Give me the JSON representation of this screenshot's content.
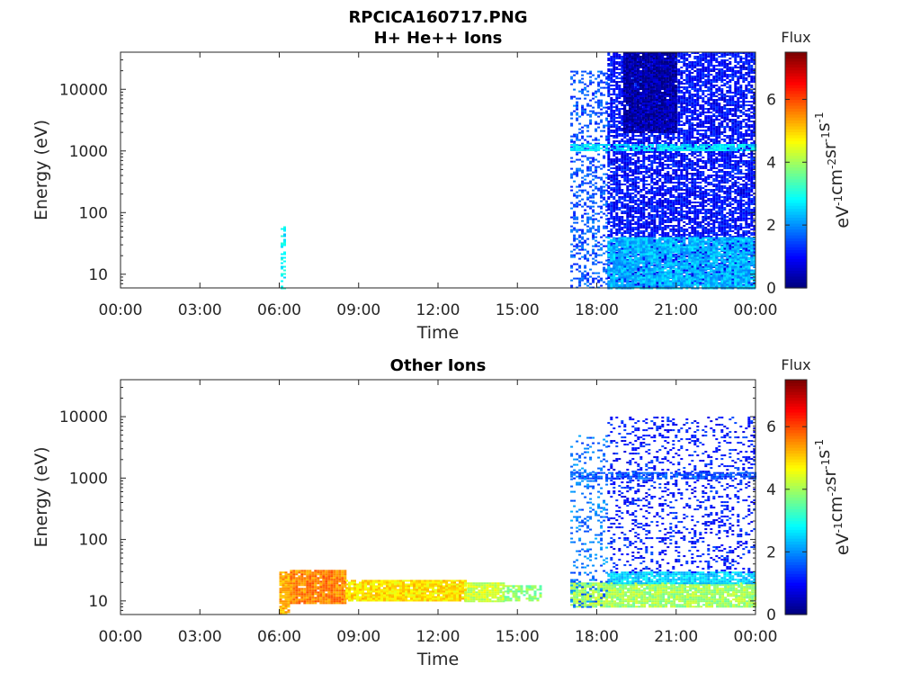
{
  "figure": {
    "title": "RPCICA160717.PNG"
  },
  "chart_data": [
    {
      "type": "heatmap",
      "title": "H+ He++ Ions",
      "xlabel": "Time",
      "ylabel": "Energy (eV)",
      "xticks": [
        "00:00",
        "03:00",
        "06:00",
        "09:00",
        "12:00",
        "15:00",
        "18:00",
        "21:00",
        "00:00"
      ],
      "xlim_hours": [
        0,
        24
      ],
      "yscale": "log",
      "yticks": [
        "10",
        "100",
        "1000",
        "10000"
      ],
      "ylim": [
        6,
        40000
      ],
      "colorbar": {
        "title": "Flux",
        "label": "eV-1 cm-2 sr-1 s-1",
        "ticks": [
          "0",
          "2",
          "4",
          "6"
        ],
        "range": [
          0,
          7.5
        ],
        "colormap": "jet"
      },
      "regions": [
        {
          "t_start": 6.05,
          "t_end": 6.2,
          "e_low": 6,
          "e_high": 60,
          "flux": 2.8,
          "density": 0.5
        },
        {
          "t_start": 17.0,
          "t_end": 18.4,
          "e_low": 6,
          "e_high": 20000,
          "flux": 1.5,
          "density": 0.35
        },
        {
          "t_start": 18.4,
          "t_end": 24.0,
          "e_low": 6,
          "e_high": 40000,
          "flux": 1.0,
          "density": 0.75
        },
        {
          "t_start": 19.0,
          "t_end": 21.0,
          "e_low": 2000,
          "e_high": 40000,
          "flux": 0.3,
          "density": 0.95
        },
        {
          "t_start": 18.4,
          "t_end": 24.0,
          "e_low": 6,
          "e_high": 40,
          "flux": 2.3,
          "density": 0.85
        },
        {
          "t_start": 17.0,
          "t_end": 24.0,
          "e_low": 1000,
          "e_high": 1300,
          "flux": 2.6,
          "density": 0.8
        }
      ]
    },
    {
      "type": "heatmap",
      "title": "Other Ions",
      "xlabel": "Time",
      "ylabel": "Energy (eV)",
      "xticks": [
        "00:00",
        "03:00",
        "06:00",
        "09:00",
        "12:00",
        "15:00",
        "18:00",
        "21:00",
        "00:00"
      ],
      "xlim_hours": [
        0,
        24
      ],
      "yscale": "log",
      "yticks": [
        "10",
        "100",
        "1000",
        "10000"
      ],
      "ylim": [
        6,
        40000
      ],
      "colorbar": {
        "title": "Flux",
        "label": "eV-1 cm-2 sr-1 s-1",
        "ticks": [
          "0",
          "2",
          "4",
          "6"
        ],
        "range": [
          0,
          7.5
        ],
        "colormap": "jet"
      },
      "regions": [
        {
          "t_start": 6.0,
          "t_end": 6.4,
          "e_low": 6,
          "e_high": 30,
          "flux": 5.3,
          "density": 0.95
        },
        {
          "t_start": 6.4,
          "t_end": 8.5,
          "e_low": 9,
          "e_high": 32,
          "flux": 5.6,
          "density": 0.95
        },
        {
          "t_start": 8.5,
          "t_end": 13.0,
          "e_low": 10,
          "e_high": 22,
          "flux": 4.9,
          "density": 0.95
        },
        {
          "t_start": 13.0,
          "t_end": 14.5,
          "e_low": 10,
          "e_high": 20,
          "flux": 4.3,
          "density": 0.9
        },
        {
          "t_start": 14.5,
          "t_end": 15.9,
          "e_low": 10,
          "e_high": 18,
          "flux": 3.8,
          "density": 0.6
        },
        {
          "t_start": 17.0,
          "t_end": 24.0,
          "e_low": 8,
          "e_high": 20,
          "flux": 4.0,
          "density": 0.9
        },
        {
          "t_start": 18.4,
          "t_end": 24.0,
          "e_low": 20,
          "e_high": 30,
          "flux": 2.5,
          "density": 0.85
        },
        {
          "t_start": 18.4,
          "t_end": 24.0,
          "e_low": 30,
          "e_high": 10000,
          "flux": 1.1,
          "density": 0.22
        },
        {
          "t_start": 17.0,
          "t_end": 24.0,
          "e_low": 1000,
          "e_high": 1250,
          "flux": 1.5,
          "density": 0.75
        },
        {
          "t_start": 17.0,
          "t_end": 18.4,
          "e_low": 8,
          "e_high": 5000,
          "flux": 1.8,
          "density": 0.2
        }
      ]
    }
  ]
}
